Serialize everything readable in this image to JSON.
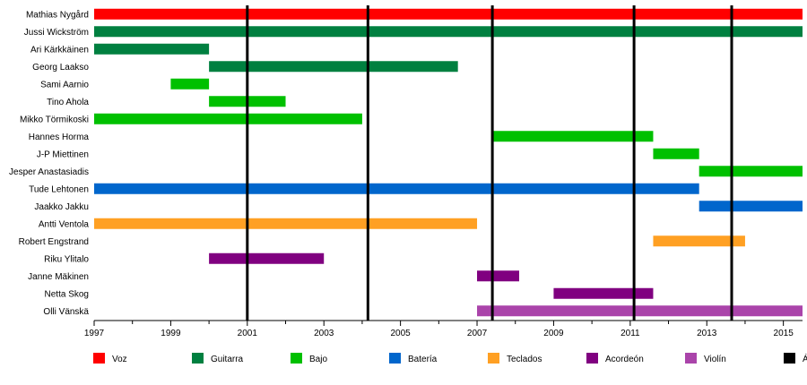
{
  "chart_data": {
    "type": "timeline",
    "title": "",
    "xlabel": "",
    "ylabel": "",
    "xlim": [
      1997,
      2015.5
    ],
    "x_ticks": [
      "1997",
      "1999",
      "2001",
      "2003",
      "2005",
      "2007",
      "2009",
      "2011",
      "2013",
      "2015"
    ],
    "grid": false,
    "legend_position": "bottom",
    "roles": [
      {
        "key": "voz",
        "name": "Voz",
        "color": "#ff0000"
      },
      {
        "key": "guitarra",
        "name": "Guitarra",
        "color": "#008040"
      },
      {
        "key": "bajo",
        "name": "Bajo",
        "color": "#00c000"
      },
      {
        "key": "bateria",
        "name": "Batería",
        "color": "#0066cc"
      },
      {
        "key": "teclados",
        "name": "Teclados",
        "color": "#ffa023"
      },
      {
        "key": "acordeon",
        "name": "Acordeón",
        "color": "#800080"
      },
      {
        "key": "violin",
        "name": "Violín",
        "color": "#aa44aa"
      },
      {
        "key": "albumes",
        "name": "Álbumes de estudio",
        "color": "#000000"
      }
    ],
    "members": [
      {
        "name": "Mathias Nygård",
        "role": "voz",
        "start": 1997.0,
        "end": 2015.5
      },
      {
        "name": "Jussi Wickström",
        "role": "guitarra",
        "start": 1997.0,
        "end": 2015.5
      },
      {
        "name": "Ari Kärkkäinen",
        "role": "guitarra",
        "start": 1997.0,
        "end": 2000.0
      },
      {
        "name": "Georg Laakso",
        "role": "guitarra",
        "start": 2000.0,
        "end": 2006.5
      },
      {
        "name": "Sami Aarnio",
        "role": "bajo",
        "start": 1999.0,
        "end": 2000.0
      },
      {
        "name": "Tino Ahola",
        "role": "bajo",
        "start": 2000.0,
        "end": 2002.0
      },
      {
        "name": "Mikko Törmikoski",
        "role": "bajo",
        "start": 1997.0,
        "end": 2004.0
      },
      {
        "name": "Hannes Horma",
        "role": "bajo",
        "start": 2007.4,
        "end": 2011.6
      },
      {
        "name": "J-P Miettinen",
        "role": "bajo",
        "start": 2011.6,
        "end": 2012.8
      },
      {
        "name": "Jesper Anastasiadis",
        "role": "bajo",
        "start": 2012.8,
        "end": 2015.5
      },
      {
        "name": "Tude Lehtonen",
        "role": "bateria",
        "start": 1997.0,
        "end": 2012.8
      },
      {
        "name": "Jaakko Jakku",
        "role": "bateria",
        "start": 2012.8,
        "end": 2015.5
      },
      {
        "name": "Antti Ventola",
        "role": "teclados",
        "start": 1997.0,
        "end": 2007.0
      },
      {
        "name": "Robert Engstrand",
        "role": "teclados",
        "start": 2011.6,
        "end": 2014.0
      },
      {
        "name": "Riku Ylitalo",
        "role": "acordeon",
        "start": 2000.0,
        "end": 2003.0
      },
      {
        "name": "Janne Mäkinen",
        "role": "acordeon",
        "start": 2007.0,
        "end": 2008.1
      },
      {
        "name": "Netta Skog",
        "role": "acordeon",
        "start": 2009.0,
        "end": 2011.6
      },
      {
        "name": "Olli Vänskä",
        "role": "violin",
        "start": 2007.0,
        "end": 2015.5
      }
    ],
    "albums": [
      2001.0,
      2004.15,
      2007.4,
      2011.1,
      2013.65
    ]
  }
}
